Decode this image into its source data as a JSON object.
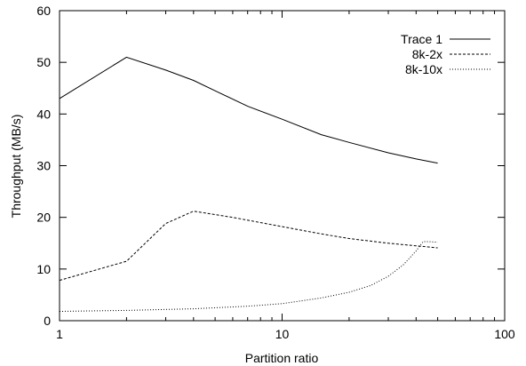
{
  "chart_data": {
    "type": "line",
    "title": "",
    "xlabel": "Partition ratio",
    "ylabel": "Throughput (MB/s)",
    "xscale": "log",
    "xlim": [
      1,
      100
    ],
    "ylim": [
      0,
      60
    ],
    "x_ticks": [
      1,
      10,
      100
    ],
    "x_tick_labels": [
      "1",
      "10",
      "100"
    ],
    "y_ticks": [
      0,
      10,
      20,
      30,
      40,
      50,
      60
    ],
    "y_tick_labels": [
      "0",
      "10",
      "20",
      "30",
      "40",
      "50",
      "60"
    ],
    "grid": false,
    "legend_position": "top-right",
    "series": [
      {
        "name": "Trace 1",
        "style": "solid",
        "x": [
          1,
          2,
          3,
          4,
          5,
          7,
          10,
          15,
          20,
          30,
          40,
          50
        ],
        "y": [
          43,
          51,
          48.5,
          46.5,
          44.5,
          41.5,
          39,
          36,
          34.5,
          32.5,
          31.3,
          30.5
        ]
      },
      {
        "name": "8k-2x",
        "style": "dashed",
        "x": [
          1,
          2,
          3,
          4,
          6,
          10,
          15,
          20,
          30,
          40,
          50
        ],
        "y": [
          7.8,
          11.5,
          18.8,
          21.2,
          20,
          18.2,
          16.8,
          15.9,
          15,
          14.5,
          14.1
        ]
      },
      {
        "name": "8k-10x",
        "style": "dotted",
        "x": [
          1,
          2,
          4,
          7,
          10,
          15,
          20,
          25,
          30,
          35,
          40,
          43,
          45,
          50
        ],
        "y": [
          1.8,
          2.0,
          2.3,
          2.8,
          3.3,
          4.4,
          5.5,
          6.8,
          8.6,
          10.8,
          13.5,
          15.3,
          15.3,
          15.2
        ]
      }
    ]
  }
}
